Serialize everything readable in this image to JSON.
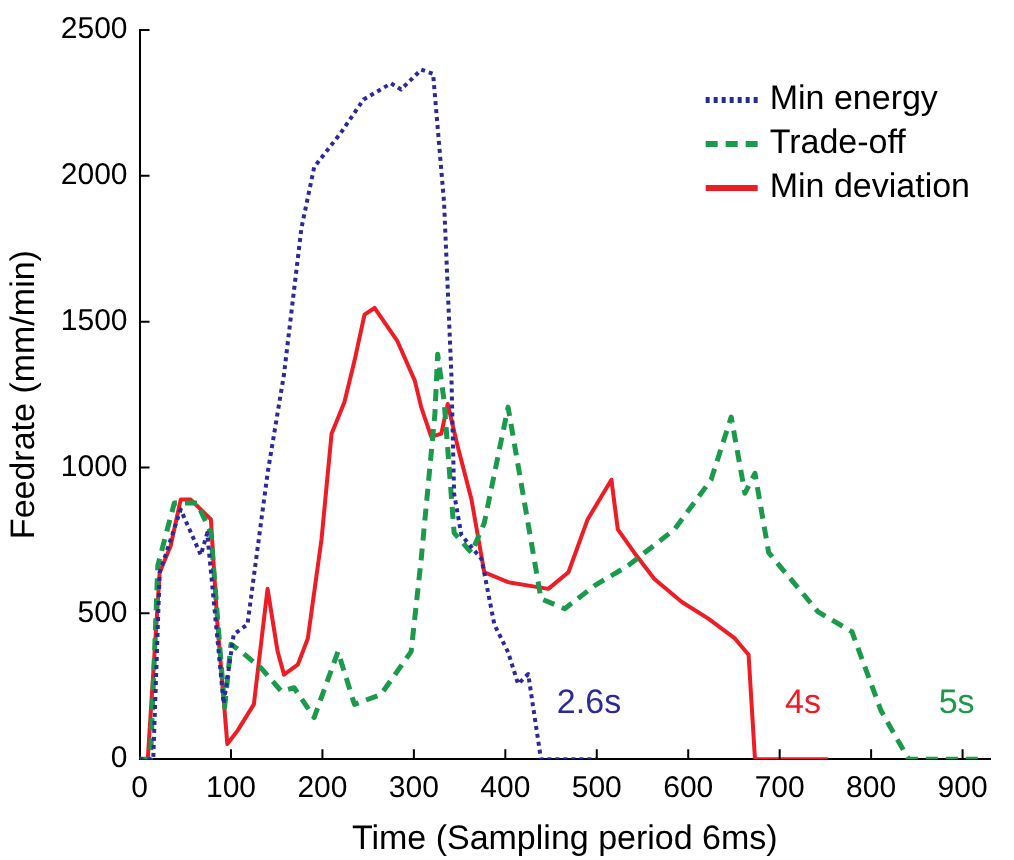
{
  "chart_data": {
    "type": "line",
    "xlabel": "Time (Sampling period 6ms)",
    "ylabel": "Feedrate (mm/min)",
    "xlim": [
      0,
      930
    ],
    "xticks": [
      0,
      100,
      200,
      300,
      400,
      500,
      600,
      700,
      800,
      900
    ],
    "ylim": [
      0,
      2500
    ],
    "yticks": [
      0,
      500,
      1000,
      1500,
      2000,
      2500
    ],
    "grid": false,
    "legend": "top right",
    "marker": "none",
    "series": [
      {
        "name": "Min energy",
        "color": "#2a2a9a",
        "line_style": "dotted",
        "x": [
          0,
          15,
          22,
          45,
          67,
          74,
          92,
          103,
          118,
          140,
          158,
          177,
          191,
          220,
          245,
          275,
          286,
          308,
          321,
          333,
          341,
          344,
          352,
          374,
          388,
          403,
          414,
          425,
          439,
          501
        ],
        "values": [
          0,
          0,
          640,
          856,
          700,
          775,
          190,
          428,
          462,
          980,
          1320,
          1820,
          2030,
          2147,
          2262,
          2317,
          2296,
          2364,
          2350,
          1909,
          1320,
          910,
          768,
          686,
          462,
          367,
          258,
          292,
          0,
          0
        ]
      },
      {
        "name": "Trade-off",
        "color": "#1a9a4a",
        "line_style": "dashed",
        "x": [
          0,
          12,
          20,
          38,
          63,
          78,
          93,
          100,
          111,
          133,
          155,
          169,
          191,
          217,
          235,
          264,
          297,
          308,
          323,
          326,
          333,
          344,
          363,
          377,
          403,
          439,
          465,
          498,
          534,
          585,
          625,
          647,
          662,
          673,
          688,
          724,
          742,
          779,
          811,
          841,
          921
        ],
        "values": [
          0,
          0,
          665,
          878,
          878,
          776,
          177,
          394,
          369,
          312,
          233,
          245,
          143,
          369,
          188,
          222,
          369,
          686,
          1184,
          1388,
          1230,
          776,
          708,
          810,
          1207,
          550,
          516,
          596,
          663,
          788,
          958,
          1173,
          912,
          980,
          708,
          573,
          505,
          437,
          165,
          0,
          0
        ]
      },
      {
        "name": "Min deviation",
        "color": "#ee1c24",
        "line_style": "solid",
        "x": [
          0,
          9,
          22,
          34,
          45,
          56,
          78,
          85,
          96,
          107,
          125,
          140,
          151,
          158,
          173,
          184,
          199,
          210,
          224,
          235,
          246,
          257,
          282,
          301,
          308,
          319,
          330,
          337,
          348,
          363,
          377,
          403,
          447,
          469,
          490,
          516,
          523,
          541,
          563,
          593,
          622,
          651,
          666,
          673,
          753
        ],
        "values": [
          0,
          0,
          640,
          731,
          890,
          890,
          822,
          471,
          52,
          97,
          188,
          584,
          369,
          290,
          324,
          414,
          754,
          1116,
          1224,
          1365,
          1524,
          1547,
          1433,
          1298,
          1207,
          1105,
          1116,
          1218,
          1071,
          890,
          641,
          607,
          584,
          641,
          822,
          958,
          788,
          708,
          618,
          539,
          482,
          414,
          358,
          0,
          0
        ]
      }
    ],
    "annotations": [
      "2.6s",
      "4s",
      "5s"
    ]
  }
}
